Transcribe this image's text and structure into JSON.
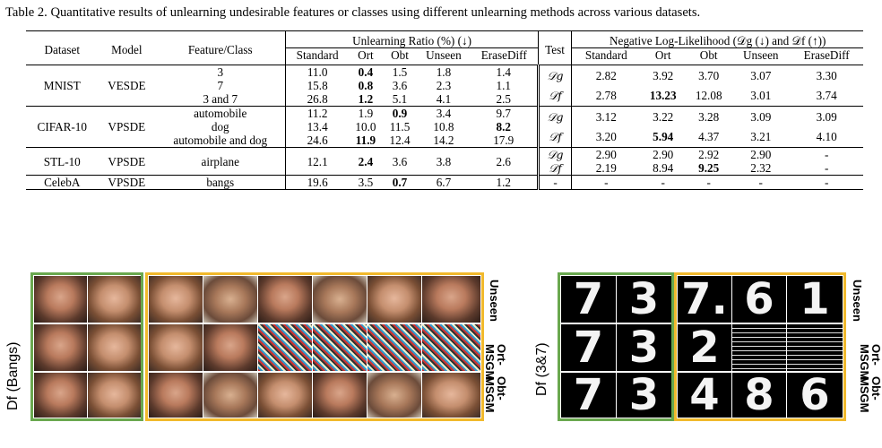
{
  "caption": "Table 2. Quantitative results of unlearning undesirable features or classes using different unlearning methods across various datasets.",
  "table": {
    "headers": {
      "dataset": "Dataset",
      "model": "Model",
      "feature": "Feature/Class",
      "unlearning_ratio": "Unlearning Ratio (%) (↓)",
      "test": "Test",
      "nll": "Negative Log-Likelihood (𝒟g (↓) and 𝒟f (↑))",
      "sub_ratio": [
        "Standard",
        "Ort",
        "Obt",
        "Unseen",
        "EraseDiff"
      ],
      "sub_nll": [
        "Standard",
        "Ort",
        "Obt",
        "Unseen",
        "EraseDiff"
      ]
    },
    "groups": [
      {
        "dataset": "MNIST",
        "model": "VESDE",
        "features": [
          "3",
          "7",
          "3 and 7"
        ],
        "ratios": [
          [
            "11.0",
            "0.4",
            "1.5",
            "1.8",
            "1.4"
          ],
          [
            "15.8",
            "0.8",
            "3.6",
            "2.3",
            "1.1"
          ],
          [
            "26.8",
            "1.2",
            "5.1",
            "4.1",
            "2.5"
          ]
        ],
        "tests": [
          "𝒟g",
          "𝒟f"
        ],
        "nll": [
          [
            "2.82",
            "3.92",
            "3.70",
            "3.07",
            "3.30"
          ],
          [
            "2.78",
            "13.23",
            "12.08",
            "3.01",
            "3.74"
          ]
        ]
      },
      {
        "dataset": "CIFAR-10",
        "model": "VPSDE",
        "features": [
          "automobile",
          "dog",
          "automobile and dog"
        ],
        "ratios": [
          [
            "11.2",
            "1.9",
            "0.9",
            "3.4",
            "9.7"
          ],
          [
            "13.4",
            "10.0",
            "11.5",
            "10.8",
            "8.2"
          ],
          [
            "24.6",
            "11.9",
            "12.4",
            "14.2",
            "17.9"
          ]
        ],
        "tests": [
          "𝒟g",
          "𝒟f"
        ],
        "nll": [
          [
            "3.12",
            "3.22",
            "3.28",
            "3.09",
            "3.09"
          ],
          [
            "3.20",
            "5.94",
            "4.37",
            "3.21",
            "4.10"
          ]
        ]
      },
      {
        "dataset": "STL-10",
        "model": "VPSDE",
        "features": [
          "airplane"
        ],
        "ratios": [
          [
            "12.1",
            "2.4",
            "3.6",
            "3.8",
            "2.6"
          ]
        ],
        "tests": [
          "𝒟g",
          "𝒟f"
        ],
        "nll": [
          [
            "2.90",
            "2.90",
            "2.92",
            "2.90",
            "-"
          ],
          [
            "2.19",
            "8.94",
            "9.25",
            "2.32",
            "-"
          ]
        ]
      },
      {
        "dataset": "CelebA",
        "model": "VPSDE",
        "features": [
          "bangs"
        ],
        "ratios": [
          [
            "19.6",
            "3.5",
            "0.7",
            "6.7",
            "1.2"
          ]
        ],
        "tests": [
          "-"
        ],
        "nll": [
          [
            "-",
            "-",
            "-",
            "-",
            "-"
          ]
        ]
      }
    ]
  },
  "figure": {
    "left_ylabel": "Df (Bangs)",
    "right_ylabel": "Df (3&7)",
    "row_labels": [
      "Unseen",
      "Ort-\nMSGM",
      "Obt-\nMSGM"
    ],
    "digits_green": [
      [
        "7",
        "3"
      ],
      [
        "7",
        "3"
      ],
      [
        "7",
        "3"
      ]
    ],
    "digits_yellow": [
      [
        "7.",
        "6",
        "1"
      ],
      [
        "2",
        "",
        ""
      ],
      [
        "4",
        "8",
        "6"
      ]
    ],
    "colors": {
      "green_border": "#6aa84f",
      "yellow_border": "#f1b92c"
    }
  }
}
